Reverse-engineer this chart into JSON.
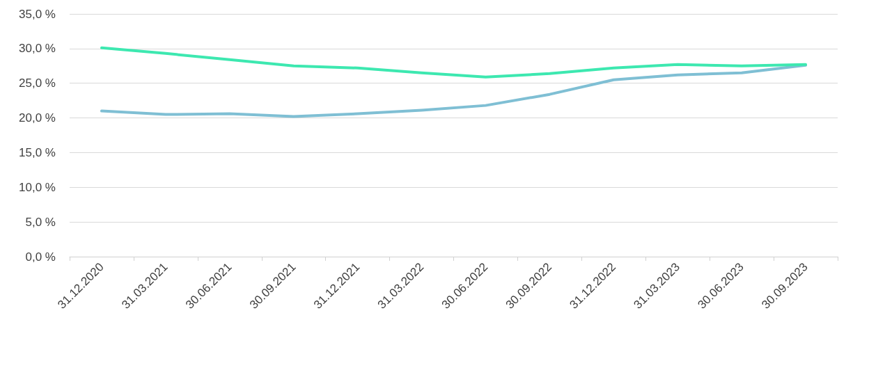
{
  "chart_data": {
    "type": "line",
    "categories": [
      "31.12.2020",
      "31.03.2021",
      "30.06.2021",
      "30.09.2021",
      "31.12.2021",
      "31.03.2022",
      "30.06.2022",
      "30.09.2022",
      "31.12.2022",
      "31.03.2023",
      "30.06.2023",
      "30.09.2023"
    ],
    "series": [
      {
        "color": "#7fbfd4",
        "values": [
          21.0,
          20.5,
          20.6,
          20.2,
          20.6,
          21.1,
          21.8,
          23.4,
          25.5,
          26.2,
          26.5,
          27.6
        ]
      },
      {
        "color": "#3de8b0",
        "values": [
          30.1,
          29.3,
          28.4,
          27.5,
          27.2,
          26.5,
          25.9,
          26.4,
          27.2,
          27.7,
          27.5,
          27.7
        ]
      }
    ],
    "ylim": [
      0,
      35
    ],
    "yticks": [
      {
        "value": 0,
        "label": "0,0 %"
      },
      {
        "value": 5,
        "label": "5,0 %"
      },
      {
        "value": 10,
        "label": "10,0 %"
      },
      {
        "value": 15,
        "label": "15,0 %"
      },
      {
        "value": 20,
        "label": "20,0 %"
      },
      {
        "value": 25,
        "label": "25,0 %"
      },
      {
        "value": 30,
        "label": "30,0 %"
      },
      {
        "value": 35,
        "label": "35,0 %"
      }
    ],
    "grid": "y",
    "marker": "none",
    "line_style": "solid"
  }
}
